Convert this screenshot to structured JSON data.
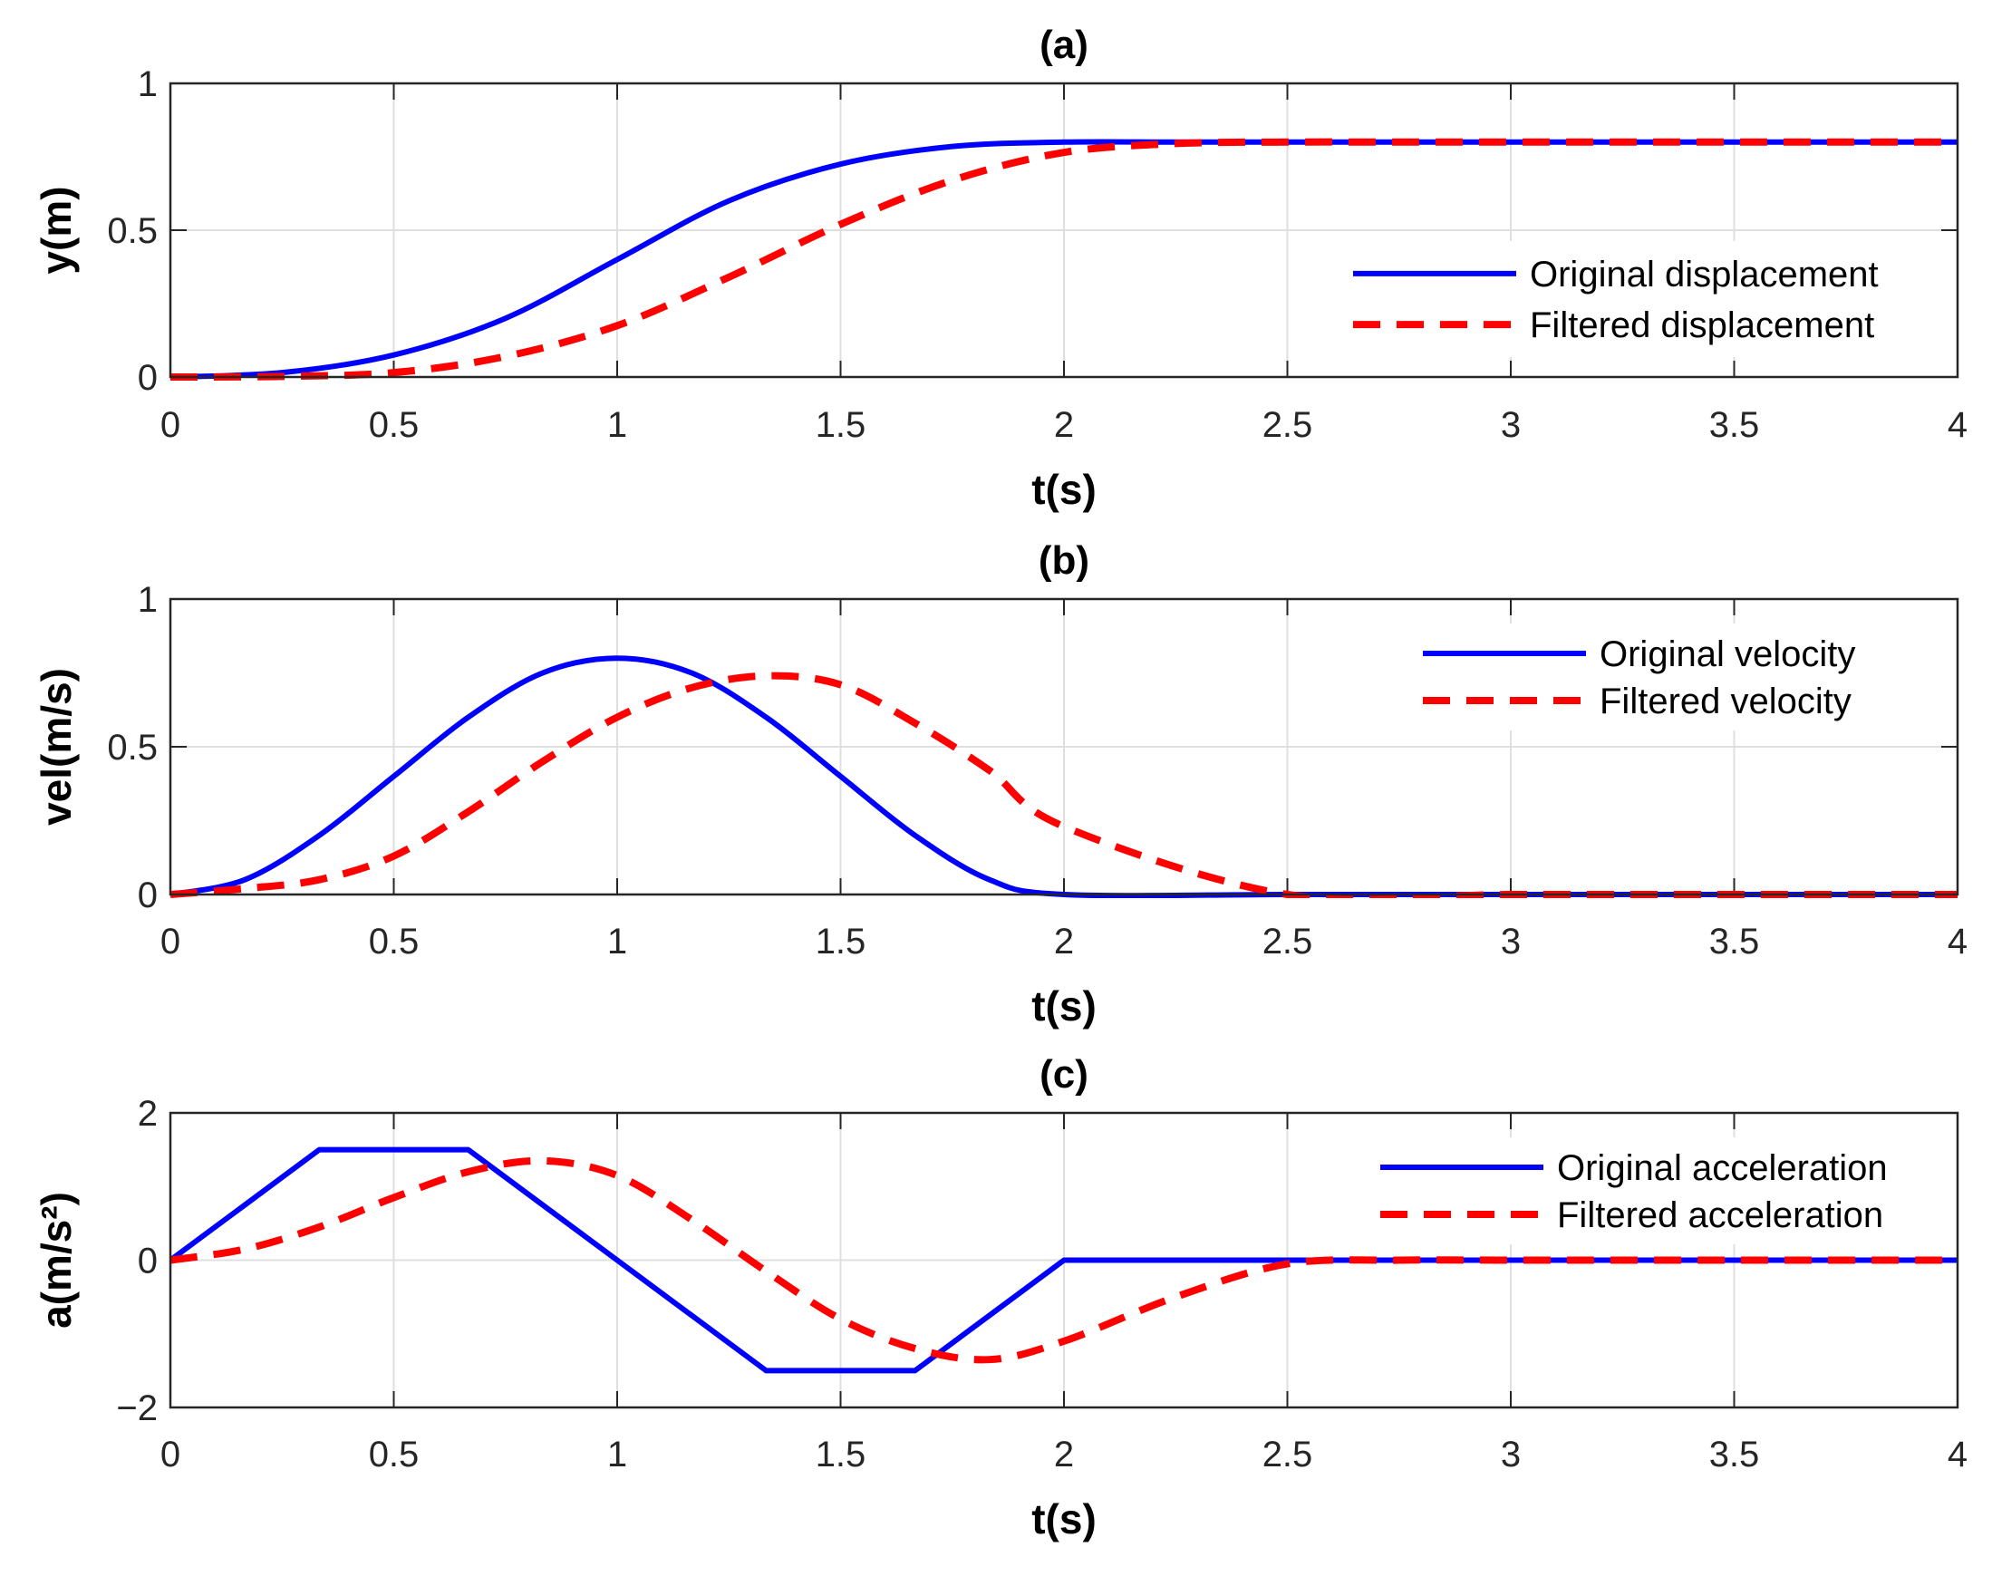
{
  "chart_data": [
    {
      "type": "line",
      "title": "(a)",
      "xlabel": "t(s)",
      "ylabel": "y(m)",
      "xlim": [
        0,
        4
      ],
      "ylim": [
        0,
        1
      ],
      "xticks": [
        "0",
        "0.5",
        "1",
        "1.5",
        "2",
        "2.5",
        "3",
        "3.5",
        "4"
      ],
      "yticks": [
        "0",
        "0.5",
        "1"
      ],
      "grid": true,
      "legend_position": "lower-right",
      "x": [
        0,
        0.25,
        0.5,
        0.75,
        1,
        1.25,
        1.5,
        1.75,
        2,
        2.25,
        2.5,
        2.75,
        3,
        3.25,
        3.5,
        3.75,
        4
      ],
      "series": [
        {
          "name": "Original displacement",
          "color": "#0000ff",
          "style": "solid",
          "values": [
            0,
            0.015,
            0.075,
            0.2,
            0.4,
            0.6,
            0.725,
            0.785,
            0.8,
            0.8,
            0.8,
            0.8,
            0.8,
            0.8,
            0.8,
            0.8,
            0.8
          ]
        },
        {
          "name": "Filtered displacement",
          "color": "#ff0000",
          "style": "dashed",
          "values": [
            0,
            0.002,
            0.015,
            0.07,
            0.175,
            0.34,
            0.52,
            0.67,
            0.765,
            0.795,
            0.8,
            0.8,
            0.8,
            0.8,
            0.8,
            0.8,
            0.8
          ]
        }
      ]
    },
    {
      "type": "line",
      "title": "(b)",
      "xlabel": "t(s)",
      "ylabel": "vel(m/s)",
      "xlim": [
        0,
        4
      ],
      "ylim": [
        0,
        1
      ],
      "xticks": [
        "0",
        "0.5",
        "1",
        "1.5",
        "2",
        "2.5",
        "3",
        "3.5",
        "4"
      ],
      "yticks": [
        "0",
        "0.5",
        "1"
      ],
      "grid": true,
      "legend_position": "top-right",
      "x": [
        0,
        0.1667,
        0.3333,
        0.5,
        0.6667,
        0.8333,
        1,
        1.1667,
        1.3333,
        1.5,
        1.6667,
        1.8333,
        2,
        2.5,
        3,
        3.5,
        4
      ],
      "series": [
        {
          "name": "Original velocity",
          "color": "#0000ff",
          "style": "solid",
          "values": [
            0,
            0.05,
            0.2,
            0.4,
            0.6,
            0.75,
            0.8,
            0.75,
            0.6,
            0.4,
            0.2,
            0.05,
            0,
            0,
            0,
            0,
            0
          ]
        },
        {
          "name": "Filtered velocity",
          "color": "#ff0000",
          "style": "dashed",
          "values": [
            0,
            0.02,
            0.05,
            0.13,
            0.28,
            0.45,
            0.6,
            0.7,
            0.74,
            0.71,
            0.58,
            0.42,
            0.23,
            0,
            0,
            0,
            0
          ]
        }
      ]
    },
    {
      "type": "line",
      "title": "(c)",
      "xlabel": "t(s)",
      "ylabel": "a(m/s²)",
      "xlim": [
        0,
        4
      ],
      "ylim": [
        -2,
        2
      ],
      "xticks": [
        "0",
        "0.5",
        "1",
        "1.5",
        "2",
        "2.5",
        "3",
        "3.5",
        "4"
      ],
      "yticks": [
        "−2",
        "0",
        "2"
      ],
      "grid": true,
      "legend_position": "top-right",
      "x": [
        0,
        0.1667,
        0.3333,
        0.5,
        0.6667,
        0.8333,
        1,
        1.1667,
        1.3333,
        1.5,
        1.6667,
        1.8333,
        2,
        2.25,
        2.5,
        2.75,
        3,
        3.5,
        4
      ],
      "series": [
        {
          "name": "Original acceleration",
          "color": "#0000ff",
          "style": "solid",
          "values": [
            0,
            0.75,
            1.5,
            1.5,
            1.5,
            0.75,
            0,
            -0.75,
            -1.5,
            -1.5,
            -1.5,
            -0.75,
            0,
            0,
            0,
            0,
            0,
            0,
            0
          ]
        },
        {
          "name": "Filtered acceleration",
          "color": "#ff0000",
          "style": "dashed",
          "values": [
            0,
            0.15,
            0.45,
            0.85,
            1.2,
            1.35,
            1.15,
            0.55,
            -0.15,
            -0.8,
            -1.2,
            -1.35,
            -1.1,
            -0.5,
            -0.05,
            0,
            0,
            0,
            0
          ]
        }
      ]
    }
  ]
}
